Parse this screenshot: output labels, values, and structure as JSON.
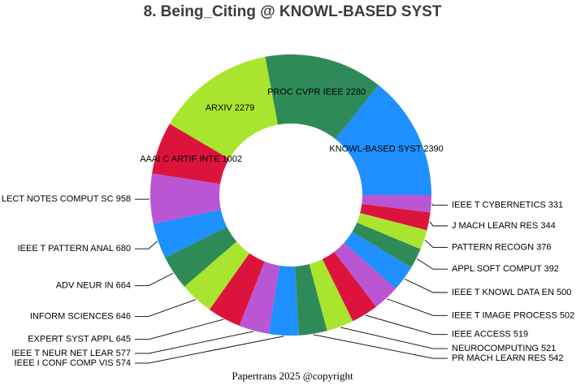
{
  "title": "8. Being_Citing @ KNOWL-BASED SYST",
  "footer": "Papertrans 2025 @copyright",
  "chart_data": {
    "type": "pie",
    "subtype": "donut",
    "title": "8. Being_Citing @ KNOWL-BASED SYST",
    "total": 16722,
    "start_angle_deg": 0,
    "direction": "counterclockwise",
    "inner_radius_ratio": 0.51,
    "legend": "none",
    "background_color": "#ffffff",
    "title_color": "#3c3c3c",
    "label_color": "#000000",
    "leader_line_color": "#000000",
    "palette": [
      "#1E90FF",
      "#2E8B57",
      "#A9E52F",
      "#DC143C",
      "#BA55D3"
    ],
    "segments": [
      {
        "label": "KNOWL-BASED SYST",
        "value": 2390,
        "label_placement": "inside"
      },
      {
        "label": "PROC CVPR IEEE",
        "value": 2280,
        "label_placement": "inside"
      },
      {
        "label": "ARXIV",
        "value": 2279,
        "label_placement": "inside"
      },
      {
        "label": "AAAI C ARTIF INTE",
        "value": 1002,
        "label_placement": "inside"
      },
      {
        "label": "LECT NOTES COMPUT SC",
        "value": 958,
        "label_placement": "outside"
      },
      {
        "label": "IEEE T PATTERN ANAL",
        "value": 680,
        "label_placement": "outside"
      },
      {
        "label": "ADV NEUR IN",
        "value": 664,
        "label_placement": "outside"
      },
      {
        "label": "INFORM SCIENCES",
        "value": 646,
        "label_placement": "outside"
      },
      {
        "label": "EXPERT SYST APPL",
        "value": 645,
        "label_placement": "outside"
      },
      {
        "label": "IEEE T NEUR NET LEAR",
        "value": 577,
        "label_placement": "outside"
      },
      {
        "label": "IEEE I CONF COMP VIS",
        "value": 574,
        "label_placement": "outside"
      },
      {
        "label": "PR MACH LEARN RES",
        "value": 542,
        "label_placement": "outside"
      },
      {
        "label": "NEUROCOMPUTING",
        "value": 521,
        "label_placement": "outside"
      },
      {
        "label": "IEEE ACCESS",
        "value": 519,
        "label_placement": "outside"
      },
      {
        "label": "IEEE T IMAGE PROCESS",
        "value": 502,
        "label_placement": "outside"
      },
      {
        "label": "IEEE T KNOWL DATA EN",
        "value": 500,
        "label_placement": "outside"
      },
      {
        "label": "APPL SOFT COMPUT",
        "value": 392,
        "label_placement": "outside"
      },
      {
        "label": "PATTERN RECOGN",
        "value": 376,
        "label_placement": "outside"
      },
      {
        "label": "J MACH LEARN RES",
        "value": 344,
        "label_placement": "outside"
      },
      {
        "label": "IEEE T CYBERNETICS",
        "value": 331,
        "label_placement": "outside"
      }
    ]
  }
}
